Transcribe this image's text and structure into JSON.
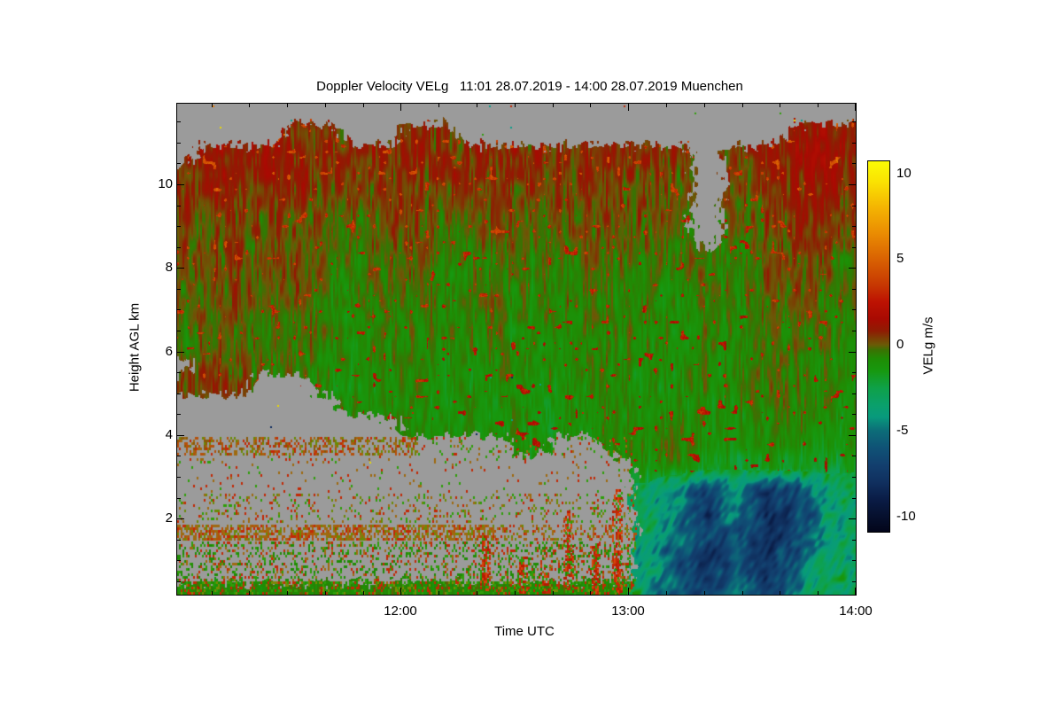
{
  "page": {
    "background": "#ffffff"
  },
  "chart_data": {
    "type": "heatmap",
    "title": "Doppler Velocity VELg   11:01 28.07.2019 - 14:00 28.07.2019 Muenchen",
    "instrument_variable": "Doppler Velocity VELg",
    "time_start": "11:01 28.07.2019",
    "time_end": "14:00 28.07.2019",
    "station": "Muenchen",
    "xlabel": "Time UTC",
    "ylabel": "Height AGL km",
    "x_axis": {
      "t0_min": 661,
      "t1_min": 840,
      "major_ticks": [
        {
          "t": 720,
          "label": "12:00"
        },
        {
          "t": 780,
          "label": "13:00"
        },
        {
          "t": 840,
          "label": "14:00"
        }
      ],
      "minor_step_min": 10
    },
    "y_axis": {
      "h0_km": 0.18,
      "h1_km": 11.93,
      "major_ticks": [
        {
          "h": 2,
          "label": "2"
        },
        {
          "h": 4,
          "label": "4"
        },
        {
          "h": 6,
          "label": "6"
        },
        {
          "h": 8,
          "label": "8"
        },
        {
          "h": 10,
          "label": "10"
        }
      ],
      "minor_step_km": 0.5
    },
    "colorbar": {
      "label": "VELg m/s",
      "vmin": -10.9,
      "vmax": 10.7,
      "major_ticks": [
        {
          "v": 10,
          "label": "10"
        },
        {
          "v": 5,
          "label": "5"
        },
        {
          "v": 0,
          "label": "0"
        },
        {
          "v": -5,
          "label": "-5"
        },
        {
          "v": -10,
          "label": "-10"
        }
      ],
      "minor_step": 1,
      "stops": [
        [
          -10.9,
          "#02051a"
        ],
        [
          -10,
          "#06102e"
        ],
        [
          -9,
          "#0a1c46"
        ],
        [
          -8,
          "#10305f"
        ],
        [
          -7,
          "#123f6e"
        ],
        [
          -6,
          "#0f5276"
        ],
        [
          -5,
          "#0c6d78"
        ],
        [
          -4.2,
          "#089a7c"
        ],
        [
          -3.5,
          "#0aa06b"
        ],
        [
          -2.5,
          "#0fa148"
        ],
        [
          -1.5,
          "#17980f"
        ],
        [
          -0.8,
          "#1f8c04"
        ],
        [
          -0.3,
          "#3a7203"
        ],
        [
          0,
          "#6b5a06"
        ],
        [
          0.35,
          "#7a4004"
        ],
        [
          0.8,
          "#8f1c03"
        ],
        [
          1.5,
          "#a80a02"
        ],
        [
          2.5,
          "#bd1202"
        ],
        [
          3.5,
          "#c73802"
        ],
        [
          5,
          "#d96202"
        ],
        [
          6.5,
          "#ea8c02"
        ],
        [
          8,
          "#f4b402"
        ],
        [
          9.5,
          "#fae202"
        ],
        [
          10.7,
          "#fbfb05"
        ]
      ]
    },
    "no_data_color": "#9b9b9b",
    "grid": {
      "comment": "mean Doppler velocity m/s; rows top->bottom at heights_km; 24 columns evenly spaced 11:01->14:00; null = no echo (gray)",
      "heights_km": [
        11.7,
        11.2,
        10.7,
        10.2,
        9.7,
        9.2,
        8.7,
        8.2,
        7.7,
        7.2,
        6.7,
        6.2,
        5.7,
        5.2,
        4.7,
        4.2,
        3.7,
        3.2,
        2.7,
        2.2,
        1.7,
        1.2,
        0.7,
        0.2
      ],
      "values": [
        [
          null,
          null,
          null,
          null,
          null,
          null,
          null,
          null,
          null,
          null,
          null,
          null,
          null,
          null,
          null,
          null,
          null,
          null,
          null,
          null,
          null,
          null,
          null,
          null
        ],
        [
          null,
          null,
          null,
          null,
          0.8,
          0.5,
          null,
          null,
          0.6,
          0.4,
          null,
          null,
          null,
          null,
          null,
          null,
          null,
          null,
          null,
          null,
          null,
          0.9,
          1.1,
          0.8
        ],
        [
          null,
          0.9,
          1.0,
          0.8,
          1.1,
          0.7,
          0.5,
          0.8,
          0.9,
          0.6,
          0.7,
          0.8,
          0.5,
          0.6,
          0.8,
          0.7,
          0.6,
          0.5,
          null,
          0.4,
          0.7,
          1.2,
          1.4,
          1.0
        ],
        [
          0.5,
          0.8,
          0.9,
          0.6,
          0.9,
          0.4,
          0.2,
          0.6,
          0.7,
          0.3,
          0.5,
          0.6,
          0.3,
          0.4,
          0.6,
          0.5,
          0.4,
          0.2,
          null,
          0.1,
          0.5,
          0.9,
          1.1,
          0.7
        ],
        [
          0.3,
          0.6,
          0.7,
          0.4,
          0.7,
          0.2,
          0.0,
          0.4,
          0.5,
          0.1,
          0.3,
          0.4,
          0.1,
          0.2,
          0.4,
          0.3,
          0.2,
          0.0,
          null,
          -0.1,
          0.3,
          0.7,
          0.9,
          0.5
        ],
        [
          0.1,
          0.4,
          0.5,
          0.2,
          0.5,
          0.0,
          -0.2,
          0.2,
          0.3,
          -0.1,
          0.1,
          0.2,
          -0.1,
          0.0,
          0.2,
          0.1,
          0.0,
          -0.2,
          null,
          -0.3,
          0.1,
          0.5,
          0.7,
          0.3
        ],
        [
          0.0,
          0.2,
          0.3,
          0.0,
          0.3,
          -0.2,
          -0.4,
          0.0,
          0.1,
          -0.3,
          -0.1,
          0.0,
          -0.3,
          -0.2,
          0.0,
          -0.1,
          -0.2,
          -0.4,
          null,
          -0.4,
          -0.1,
          0.3,
          0.5,
          0.1
        ],
        [
          -0.1,
          0.1,
          0.2,
          -0.1,
          0.2,
          -0.3,
          -0.6,
          -0.2,
          0.0,
          -0.5,
          -0.3,
          -0.2,
          -0.5,
          -0.4,
          -0.2,
          -0.3,
          -0.4,
          -0.5,
          -0.2,
          -0.5,
          0.2,
          0.4,
          0.0,
          -0.2
        ],
        [
          -0.2,
          0.0,
          0.1,
          -0.2,
          0.1,
          -0.5,
          -0.8,
          -0.4,
          -0.1,
          -0.7,
          -0.5,
          -0.4,
          -0.7,
          -0.6,
          -0.4,
          -0.5,
          -0.6,
          -0.7,
          -0.3,
          -0.6,
          0.1,
          0.2,
          -0.1,
          -0.4
        ],
        [
          -0.3,
          -0.1,
          0.0,
          -0.3,
          0.0,
          -0.6,
          -0.9,
          -0.5,
          -0.2,
          -0.8,
          -0.6,
          -0.5,
          -0.8,
          -0.7,
          -0.5,
          -0.6,
          -0.7,
          -0.8,
          -0.5,
          -0.7,
          -0.1,
          0.0,
          -0.3,
          -0.5
        ],
        [
          -0.4,
          -0.2,
          -0.1,
          -0.4,
          -0.2,
          -0.7,
          -1.0,
          -0.6,
          -0.3,
          -0.9,
          -0.7,
          -0.6,
          -0.9,
          -0.8,
          -0.6,
          -0.7,
          -0.8,
          -0.9,
          -0.6,
          -0.8,
          -0.3,
          -0.2,
          -0.4,
          -0.6
        ],
        [
          -0.5,
          -0.3,
          -0.2,
          -0.5,
          -0.3,
          -0.8,
          -1.1,
          -0.7,
          -0.4,
          -1.0,
          -0.8,
          -0.7,
          -1.0,
          -0.9,
          -0.7,
          -0.8,
          -0.9,
          -1.0,
          -0.7,
          -0.9,
          -0.4,
          -0.3,
          -0.5,
          -0.7
        ],
        [
          null,
          0.2,
          -0.2,
          -0.3,
          -0.5,
          -0.9,
          -1.1,
          -0.8,
          -0.5,
          -1.1,
          -0.9,
          -0.8,
          -1.0,
          -0.9,
          -0.7,
          -0.8,
          -0.9,
          -1.0,
          -0.8,
          -0.9,
          -0.5,
          -0.4,
          -0.6,
          -0.8
        ],
        [
          0.3,
          0.2,
          0.2,
          null,
          null,
          -0.9,
          -1.2,
          -0.9,
          -0.6,
          -1.2,
          -1.0,
          -0.9,
          -1.1,
          -1.0,
          -0.8,
          -0.9,
          -1.0,
          -1.1,
          -0.9,
          -1.0,
          -0.6,
          -0.5,
          -0.7,
          -0.9
        ],
        [
          null,
          null,
          null,
          null,
          null,
          null,
          -1.0,
          -0.9,
          -0.7,
          -1.2,
          -1.0,
          -0.9,
          -1.1,
          -1.0,
          -0.8,
          -0.9,
          -1.1,
          -1.2,
          -1.0,
          -1.1,
          -0.7,
          -0.6,
          -0.8,
          -1.0
        ],
        [
          null,
          null,
          null,
          null,
          null,
          null,
          null,
          null,
          -0.5,
          -0.9,
          -1.1,
          -1.0,
          -1.2,
          -1.1,
          -0.9,
          -1.0,
          -0.8,
          -0.6,
          -1.1,
          -1.2,
          -0.8,
          -0.7,
          -0.9,
          -1.1
        ],
        [
          null,
          null,
          null,
          null,
          null,
          null,
          null,
          null,
          null,
          null,
          null,
          null,
          -1.0,
          null,
          null,
          -0.9,
          -1.0,
          -0.4,
          -1.3,
          -1.4,
          -1.0,
          -0.9,
          -1.1,
          -1.3
        ],
        [
          null,
          null,
          null,
          null,
          null,
          null,
          null,
          null,
          null,
          null,
          null,
          null,
          null,
          null,
          null,
          null,
          -1.5,
          -1.2,
          -1.8,
          -2.0,
          -1.6,
          -1.5,
          -1.7,
          -2.0
        ],
        [
          null,
          null,
          null,
          null,
          null,
          null,
          null,
          null,
          null,
          null,
          null,
          null,
          null,
          null,
          null,
          null,
          -2.5,
          -4.5,
          -6.5,
          -4.5,
          -7.5,
          -6.5,
          -3.5,
          -3.0
        ],
        [
          null,
          null,
          null,
          null,
          null,
          null,
          null,
          null,
          null,
          null,
          null,
          null,
          null,
          null,
          null,
          null,
          -3.0,
          -5.0,
          -7.0,
          -5.0,
          -8.0,
          -7.0,
          -4.0,
          -3.2
        ],
        [
          null,
          null,
          null,
          null,
          null,
          null,
          null,
          null,
          null,
          null,
          null,
          null,
          null,
          null,
          null,
          null,
          -3.5,
          -5.5,
          -7.5,
          -5.5,
          -8.5,
          -7.0,
          -4.2,
          -3.4
        ],
        [
          null,
          null,
          null,
          null,
          null,
          null,
          null,
          null,
          null,
          null,
          null,
          null,
          null,
          null,
          null,
          null,
          -3.8,
          -6.0,
          -7.8,
          -5.8,
          -8.0,
          -6.0,
          -4.0,
          -3.0
        ],
        [
          null,
          null,
          null,
          null,
          null,
          null,
          null,
          null,
          null,
          null,
          null,
          null,
          null,
          null,
          null,
          null,
          -4.0,
          -6.2,
          -7.0,
          -6.0,
          -7.5,
          -5.5,
          -3.8,
          -2.8
        ],
        [
          -0.8,
          -0.7,
          -0.9,
          -0.8,
          -0.6,
          -0.9,
          -0.8,
          -0.7,
          -0.9,
          -0.8,
          -0.7,
          -0.9,
          -0.8,
          -0.6,
          -0.8,
          -0.7,
          -4.0,
          -6.0,
          -6.5,
          -5.5,
          -7.0,
          -5.0,
          -3.5,
          -2.5
        ]
      ]
    },
    "texture": {
      "noise": {
        "cloud_amp": 1.5,
        "rain_amp": 2.4
      },
      "speckle_zones": [
        {
          "t": [
            661,
            782
          ],
          "h": [
            0.45,
            1.45
          ],
          "density": 0.3,
          "step": [
            2,
            3
          ],
          "colors": [
            "#1f8c05",
            "#2f9e0a",
            "#c22905",
            "#9e6a10",
            "#1f8c05"
          ]
        },
        {
          "t": [
            661,
            782
          ],
          "h": [
            0.15,
            0.5
          ],
          "density": 0.5,
          "step": [
            2,
            3
          ],
          "colors": [
            "#1f8c05",
            "#2f9e0a",
            "#c22905",
            "#1f8c05",
            "#7a8a05"
          ]
        },
        {
          "t": [
            661,
            745
          ],
          "h": [
            1.5,
            1.85
          ],
          "density": 0.62,
          "step": [
            2,
            3
          ],
          "colors": [
            "#9e6a10",
            "#b5500a",
            "#c22905",
            "#6b8a05",
            "#9e6a10"
          ]
        },
        {
          "t": [
            745,
            782
          ],
          "h": [
            1.5,
            1.85
          ],
          "density": 0.35,
          "step": [
            2,
            3
          ],
          "colors": [
            "#9e6a10",
            "#b5500a",
            "#c22905",
            "#6b8a05"
          ]
        },
        {
          "t": [
            661,
            782
          ],
          "h": [
            1.9,
            2.6
          ],
          "density": 0.15,
          "step": [
            2,
            3
          ],
          "colors": [
            "#9e6a10",
            "#2f9e0a",
            "#c22905",
            "#6b8a05"
          ]
        },
        {
          "t": [
            661,
            782
          ],
          "h": [
            2.65,
            3.5
          ],
          "density": 0.05,
          "step": [
            2,
            3
          ],
          "colors": [
            "#2f9e0a",
            "#c22905",
            "#9e6a10"
          ]
        },
        {
          "t": [
            661,
            724
          ],
          "h": [
            3.55,
            3.95
          ],
          "density": 0.45,
          "step": [
            2,
            3
          ],
          "colors": [
            "#9e6a10",
            "#b5500a",
            "#8a5a08",
            "#c22905",
            "#6b8a05"
          ]
        },
        {
          "t": [
            724,
            782
          ],
          "h": [
            3.55,
            3.95
          ],
          "density": 0.1,
          "step": [
            2,
            3
          ],
          "colors": [
            "#9e6a10",
            "#2f9e0a",
            "#c22905"
          ]
        }
      ],
      "noise_dots": [
        {
          "t": [
            661,
            840
          ],
          "h": [
            11.05,
            11.88
          ],
          "density": 0.02,
          "step": [
            8,
            8
          ],
          "colors": [
            "#e8d805",
            "#0a9e8a",
            "#c22905",
            "#0a2a5e",
            "#e87a05",
            "#2f9e0a"
          ]
        },
        {
          "t": [
            680,
            770
          ],
          "h": [
            3.2,
            5.4
          ],
          "density": 0.012,
          "step": [
            8,
            8
          ],
          "colors": [
            "#0a9e8a",
            "#c22905",
            "#0a2a5e",
            "#e8d805"
          ]
        }
      ],
      "plumes": [
        {
          "t": 742,
          "h_top": 1.6
        },
        {
          "t": 752,
          "h_top": 1.1
        },
        {
          "t": 758,
          "h_top": 0.9
        },
        {
          "t": 764,
          "h_top": 2.2
        },
        {
          "t": 771,
          "h_top": 1.4
        },
        {
          "t": 777,
          "h_top": 2.7
        }
      ],
      "plume_colors": [
        "#c22905",
        "#b51c03",
        "#d8430a",
        "#2f9e0a"
      ]
    }
  }
}
